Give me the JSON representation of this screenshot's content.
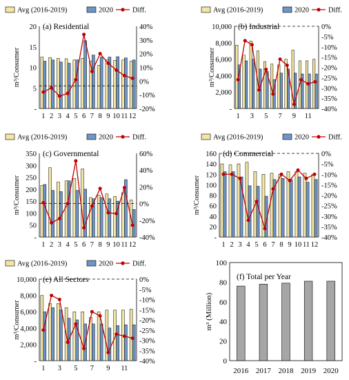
{
  "colors": {
    "avg": "#f3e5a3",
    "y2020": "#6d95c8",
    "diff": "#c00000",
    "total": "#a6a6a6",
    "frame": "#000000"
  },
  "legend": {
    "avg": "Avg (2016-2019)",
    "y2020": "2020",
    "diff": "Diff."
  },
  "chart_data": [
    {
      "id": "a",
      "type": "bar",
      "title": "(a) Residential",
      "ylabel": "m³/Consumer",
      "categories": [
        "1",
        "2",
        "3",
        "4",
        "5",
        "6",
        "7",
        "8",
        "9",
        "10",
        "11",
        "12"
      ],
      "yticks": [
        "-",
        "5",
        "10",
        "15",
        "20"
      ],
      "y2ticks": [
        "-20%",
        "-10%",
        "0%",
        "10%",
        "20%",
        "30%",
        "40%"
      ],
      "ylim": [
        0,
        20
      ],
      "y2lim": [
        -20,
        40
      ],
      "series": [
        {
          "name": "Avg (2016-2019)",
          "values": [
            12.5,
            12.4,
            12.2,
            12.1,
            11.8,
            12.2,
            11.5,
            10.5,
            11.8,
            11.7,
            11.8,
            11.5
          ]
        },
        {
          "name": "2020",
          "values": [
            11.5,
            11.8,
            11.3,
            11.0,
            11.8,
            16.5,
            13.0,
            12.5,
            12.5,
            12.6,
            12.3,
            11.8
          ]
        },
        {
          "name": "Diff.",
          "axis": "right",
          "values": [
            -8,
            -5,
            -11,
            -9,
            1,
            34,
            7,
            20,
            13,
            8,
            4,
            2
          ]
        }
      ],
      "reference_line": {
        "axis": "right",
        "value": -3.5,
        "style": "dashed"
      }
    },
    {
      "id": "b",
      "type": "bar",
      "title": "(b) Industrial",
      "ylabel": "m³/Consumer",
      "categories": [
        "1",
        "",
        "3",
        "",
        "5",
        "",
        "7",
        "",
        "9",
        "",
        "11",
        ""
      ],
      "yticks": [
        "-",
        "2,000",
        "4,000",
        "6,000",
        "8,000",
        "10,000"
      ],
      "y2ticks": [
        "-40%",
        "-35%",
        "-30%",
        "-25%",
        "-20%",
        "-15%",
        "-10%",
        "-5%",
        "0%"
      ],
      "ylim": [
        0,
        10000
      ],
      "y2lim": [
        -40,
        0
      ],
      "series": [
        {
          "name": "Avg (2016-2019)",
          "values": [
            7700,
            6500,
            8200,
            7000,
            5700,
            5400,
            5300,
            6000,
            7100,
            5800,
            5800,
            6000
          ]
        },
        {
          "name": "2020",
          "values": [
            5300,
            5800,
            6000,
            4800,
            4500,
            3500,
            4300,
            4800,
            4300,
            4200,
            4200,
            4200
          ]
        },
        {
          "name": "Diff.",
          "axis": "right",
          "values": [
            -26,
            -7,
            -9,
            -31,
            -21,
            -33,
            -16,
            -19,
            -38,
            -26,
            -28,
            -27
          ]
        }
      ],
      "reference_line": {
        "axis": "left",
        "value": 10000,
        "style": "dashed"
      }
    },
    {
      "id": "c",
      "type": "bar",
      "title": "(c) Governmental",
      "ylabel": "m³/Consumer",
      "categories": [
        "1",
        "2",
        "3",
        "4",
        "5",
        "6",
        "7",
        "8",
        "9",
        "10",
        "11",
        "12"
      ],
      "yticks": [
        "-",
        "50",
        "100",
        "150",
        "200",
        "250",
        "300",
        "350"
      ],
      "y2ticks": [
        "-40%",
        "-20%",
        "0%",
        "20%",
        "40%",
        "60%"
      ],
      "ylim": [
        0,
        350
      ],
      "y2lim": [
        -40,
        60
      ],
      "series": [
        {
          "name": "Avg (2016-2019)",
          "values": [
            215,
            290,
            230,
            235,
            245,
            285,
            165,
            175,
            180,
            170,
            185,
            155
          ]
        },
        {
          "name": "2020",
          "values": [
            220,
            195,
            190,
            235,
            195,
            200,
            160,
            165,
            160,
            150,
            240,
            115
          ]
        },
        {
          "name": "Diff.",
          "axis": "right",
          "values": [
            1,
            -23,
            -18,
            0,
            51,
            -29,
            -3,
            18,
            -11,
            -12,
            19,
            -26
          ]
        }
      ],
      "reference_line": {
        "axis": "right",
        "value": 0,
        "style": "dashed"
      }
    },
    {
      "id": "d",
      "type": "bar",
      "title": "(d) Commercial",
      "ylabel": "m³/Consumer",
      "categories": [
        "1",
        "2",
        "3",
        "4",
        "5",
        "6",
        "7",
        "8",
        "9",
        "10",
        "11",
        "12"
      ],
      "yticks": [
        "-",
        "20",
        "40",
        "60",
        "80",
        "100",
        "120",
        "140",
        "160"
      ],
      "y2ticks": [
        "-40%",
        "-35%",
        "-30%",
        "-25%",
        "-20%",
        "-15%",
        "-10%",
        "-5%",
        "0%"
      ],
      "ylim": [
        0,
        160
      ],
      "y2lim": [
        -40,
        0
      ],
      "series": [
        {
          "name": "Avg (2016-2019)",
          "values": [
            140,
            138,
            140,
            143,
            125,
            120,
            122,
            120,
            125,
            125,
            122,
            120
          ]
        },
        {
          "name": "2020",
          "values": [
            125,
            125,
            115,
            98,
            97,
            78,
            110,
            112,
            110,
            115,
            105,
            110
          ]
        },
        {
          "name": "Diff.",
          "axis": "right",
          "values": [
            -10,
            -10,
            -12,
            -32,
            -23,
            -36,
            -17,
            -10,
            -13,
            -8,
            -12,
            -10
          ]
        }
      ],
      "reference_line": {
        "axis": "left",
        "value": 160,
        "style": "dashed"
      }
    },
    {
      "id": "e",
      "type": "bar",
      "title": "(e) All Sectors",
      "ylabel": "m³/Consumer",
      "categories": [
        "1",
        "",
        "3",
        "",
        "5",
        "",
        "7",
        "",
        "9",
        "",
        "11",
        ""
      ],
      "yticks": [
        "-",
        "2,000",
        "4,000",
        "6,000",
        "8,000",
        "10,000"
      ],
      "y2ticks": [
        "-40%",
        "-35%",
        "-30%",
        "-25%",
        "-20%",
        "-15%",
        "-10%",
        "-5%",
        "0%"
      ],
      "ylim": [
        0,
        10000
      ],
      "y2lim": [
        -40,
        0
      ],
      "series": [
        {
          "name": "Avg (2016-2019)",
          "values": [
            8000,
            7000,
            7000,
            6500,
            6000,
            6000,
            5300,
            6000,
            6200,
            6200,
            6200,
            6300
          ]
        },
        {
          "name": "2020",
          "values": [
            6000,
            6500,
            6200,
            5200,
            5000,
            4500,
            4500,
            4500,
            4000,
            4300,
            4400,
            4400
          ]
        },
        {
          "name": "Diff.",
          "axis": "right",
          "values": [
            -25,
            -8,
            -10,
            -31,
            -22,
            -34,
            -16,
            -18,
            -36,
            -27,
            -28,
            -29
          ]
        }
      ],
      "reference_line": {
        "axis": "left",
        "value": 10000,
        "style": "dashed"
      }
    },
    {
      "id": "f",
      "type": "bar",
      "title": "(f) Total per Year",
      "ylabel": "m³ (Million)",
      "categories": [
        "2016",
        "2017",
        "2018",
        "2019",
        "2020"
      ],
      "yticks": [
        "0",
        "20",
        "40",
        "60",
        "80",
        "100"
      ],
      "ylim": [
        0,
        100
      ],
      "series": [
        {
          "name": "",
          "values": [
            76,
            78,
            79,
            81,
            81
          ]
        }
      ]
    }
  ]
}
